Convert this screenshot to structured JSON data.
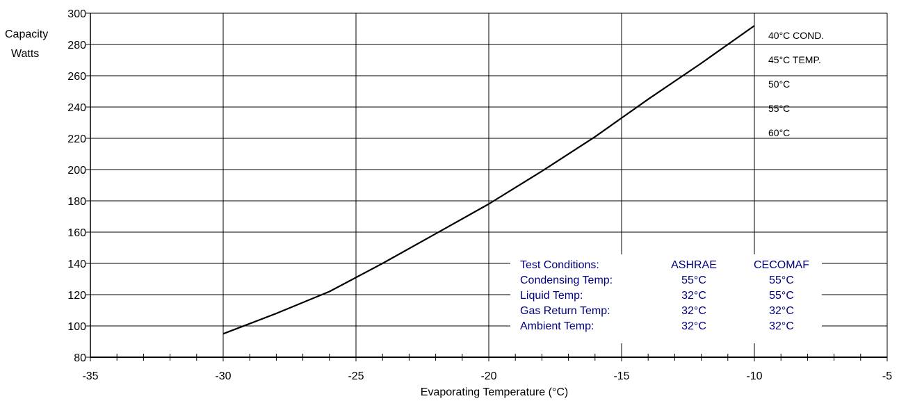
{
  "chart_data": {
    "type": "line",
    "title": "",
    "xlabel": "Evaporating Temperature  (°C)",
    "ylabel_lines": [
      "Capacity",
      "Watts"
    ],
    "xlim": [
      -35,
      -5
    ],
    "ylim": [
      80,
      300
    ],
    "x_ticks": [
      -35,
      -30,
      -25,
      -20,
      -15,
      -10,
      -5
    ],
    "y_ticks": [
      80,
      100,
      120,
      140,
      160,
      180,
      200,
      220,
      240,
      260,
      280,
      300
    ],
    "grid": true,
    "series": [
      {
        "x": [
          -30,
          -28,
          -26,
          -24,
          -22,
          -20,
          -18,
          -16,
          -14,
          -12,
          -10
        ],
        "y": [
          95,
          108,
          122,
          140,
          159,
          178,
          199,
          221,
          245,
          268,
          292
        ]
      }
    ],
    "series_labels": [
      "40°C COND.",
      "45°C TEMP.",
      "50°C",
      "55°C",
      "60°C"
    ],
    "test_conditions": {
      "header": [
        "Test Conditions:",
        "ASHRAE",
        "CECOMAF"
      ],
      "rows": [
        [
          "Condensing Temp:",
          "55°C",
          "55°C"
        ],
        [
          "Liquid Temp:",
          "32°C",
          "55°C"
        ],
        [
          "Gas Return Temp:",
          "32°C",
          "32°C"
        ],
        [
          "Ambient Temp:",
          "32°C",
          "32°C"
        ]
      ]
    },
    "colors": {
      "line": "#000000",
      "grid": "#000000",
      "conditions_text": "#000080"
    }
  }
}
